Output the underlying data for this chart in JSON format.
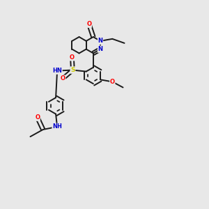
{
  "background_color": "#e8e8e8",
  "bond_color": "#1a1a1a",
  "atom_colors": {
    "O": "#ff0000",
    "N": "#0000cc",
    "S": "#cccc00",
    "H": "#5a9a9a",
    "C": "#1a1a1a"
  },
  "figsize": [
    3.0,
    3.0
  ],
  "dpi": 100,
  "lw": 1.4,
  "fs": 6.0
}
